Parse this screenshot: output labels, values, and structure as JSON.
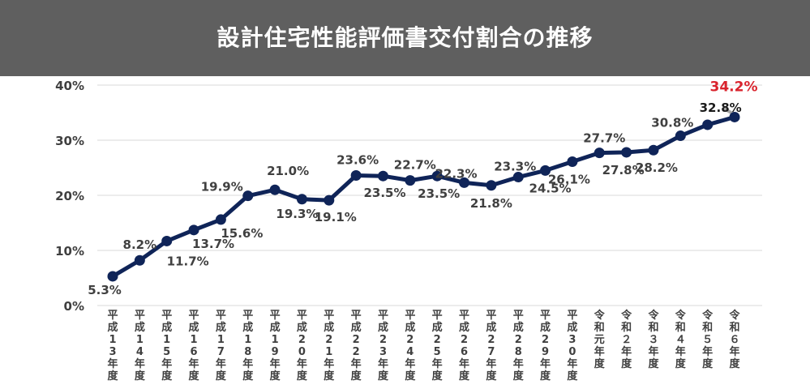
{
  "header": {
    "title": "設計住宅性能評価書交付割合の推移"
  },
  "colors": {
    "banner": "#5f5f5f",
    "line": "#0f2458",
    "label": "#404040",
    "highlight": "#d9232d",
    "grid": "#d9d9d9"
  },
  "chart_data": {
    "type": "line",
    "title": "",
    "xlabel": "",
    "ylabel": "",
    "ylim": [
      0,
      40
    ],
    "yticks": [
      "0%",
      "10%",
      "20%",
      "30%",
      "40%"
    ],
    "grid": "horizontal",
    "categories": [
      "平成13年度",
      "平成14年度",
      "平成15年度",
      "平成16年度",
      "平成17年度",
      "平成18年度",
      "平成19年度",
      "平成20年度",
      "平成21年度",
      "平成22年度",
      "平成23年度",
      "平成24年度",
      "平成25年度",
      "平成26年度",
      "平成27年度",
      "平成28年度",
      "平成29年度",
      "平成30年度",
      "令和元年度",
      "令和２年度",
      "令和３年度",
      "令和４年度",
      "令和５年度",
      "令和６年度"
    ],
    "series": [
      {
        "values": [
          5.3,
          8.2,
          11.7,
          13.7,
          15.6,
          19.9,
          21.0,
          19.3,
          19.1,
          23.6,
          23.5,
          22.7,
          23.5,
          22.3,
          21.8,
          23.3,
          24.5,
          26.1,
          27.7,
          27.8,
          28.2,
          30.8,
          32.8,
          34.2
        ],
        "data_labels": [
          "5.3%",
          "8.2%",
          "11.7%",
          "13.7%",
          "15.6%",
          "19.9%",
          "21.0%",
          "19.3%",
          "19.1%",
          "23.6%",
          "23.5%",
          "22.7%",
          "23.5%",
          "22.3%",
          "21.8%",
          "23.3%",
          "24.5%",
          "26.1%",
          "27.7%",
          "27.8%",
          "28.2%",
          "30.8%",
          "32.8%",
          "34.2%"
        ]
      }
    ]
  }
}
